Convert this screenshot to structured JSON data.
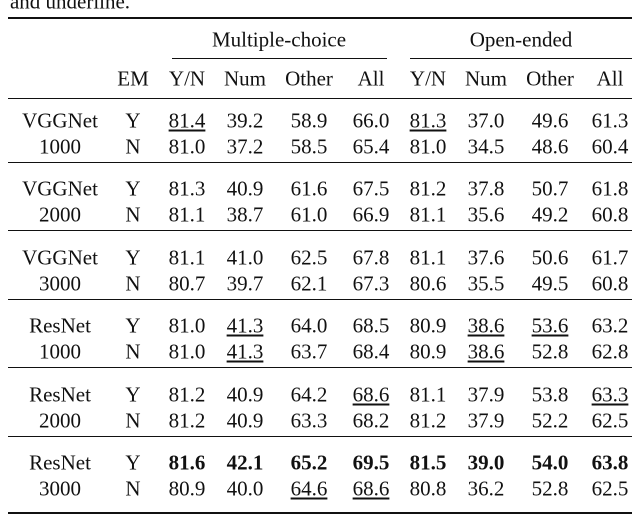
{
  "caption_fragment": "and underline.",
  "header": {
    "groups": [
      "Multiple-choice",
      "Open-ended"
    ],
    "columns": [
      "EM",
      "Y/N",
      "Num",
      "Other",
      "All",
      "Y/N",
      "Num",
      "Other",
      "All"
    ]
  },
  "groups": [
    {
      "model": "VGGNet",
      "size": "1000",
      "rows": [
        {
          "em": "Y",
          "values": [
            "81.4",
            "39.2",
            "58.9",
            "66.0",
            "81.3",
            "37.0",
            "49.6",
            "61.3"
          ],
          "underline": [
            0,
            4
          ],
          "bold": false
        },
        {
          "em": "N",
          "values": [
            "81.0",
            "37.2",
            "58.5",
            "65.4",
            "81.0",
            "34.5",
            "48.6",
            "60.4"
          ],
          "underline": [],
          "bold": false
        }
      ]
    },
    {
      "model": "VGGNet",
      "size": "2000",
      "rows": [
        {
          "em": "Y",
          "values": [
            "81.3",
            "40.9",
            "61.6",
            "67.5",
            "81.2",
            "37.8",
            "50.7",
            "61.8"
          ],
          "underline": [],
          "bold": false
        },
        {
          "em": "N",
          "values": [
            "81.1",
            "38.7",
            "61.0",
            "66.9",
            "81.1",
            "35.6",
            "49.2",
            "60.8"
          ],
          "underline": [],
          "bold": false
        }
      ]
    },
    {
      "model": "VGGNet",
      "size": "3000",
      "rows": [
        {
          "em": "Y",
          "values": [
            "81.1",
            "41.0",
            "62.5",
            "67.8",
            "81.1",
            "37.6",
            "50.6",
            "61.7"
          ],
          "underline": [],
          "bold": false
        },
        {
          "em": "N",
          "values": [
            "80.7",
            "39.7",
            "62.1",
            "67.3",
            "80.6",
            "35.5",
            "49.5",
            "60.8"
          ],
          "underline": [],
          "bold": false
        }
      ]
    },
    {
      "model": "ResNet",
      "size": "1000",
      "rows": [
        {
          "em": "Y",
          "values": [
            "81.0",
            "41.3",
            "64.0",
            "68.5",
            "80.9",
            "38.6",
            "53.6",
            "63.2"
          ],
          "underline": [
            1,
            5,
            6
          ],
          "bold": false
        },
        {
          "em": "N",
          "values": [
            "81.0",
            "41.3",
            "63.7",
            "68.4",
            "80.9",
            "38.6",
            "52.8",
            "62.8"
          ],
          "underline": [
            1,
            5
          ],
          "bold": false
        }
      ]
    },
    {
      "model": "ResNet",
      "size": "2000",
      "rows": [
        {
          "em": "Y",
          "values": [
            "81.2",
            "40.9",
            "64.2",
            "68.6",
            "81.1",
            "37.9",
            "53.8",
            "63.3"
          ],
          "underline": [
            3,
            7
          ],
          "bold": false
        },
        {
          "em": "N",
          "values": [
            "81.2",
            "40.9",
            "63.3",
            "68.2",
            "81.2",
            "37.9",
            "52.2",
            "62.5"
          ],
          "underline": [],
          "bold": false
        }
      ]
    },
    {
      "model": "ResNet",
      "size": "3000",
      "rows": [
        {
          "em": "Y",
          "values": [
            "81.6",
            "42.1",
            "65.2",
            "69.5",
            "81.5",
            "39.0",
            "54.0",
            "63.8"
          ],
          "underline": [],
          "bold": true
        },
        {
          "em": "N",
          "values": [
            "80.9",
            "40.0",
            "64.6",
            "68.6",
            "80.8",
            "36.2",
            "52.8",
            "62.5"
          ],
          "underline": [
            2,
            3
          ],
          "bold": false
        }
      ]
    }
  ]
}
